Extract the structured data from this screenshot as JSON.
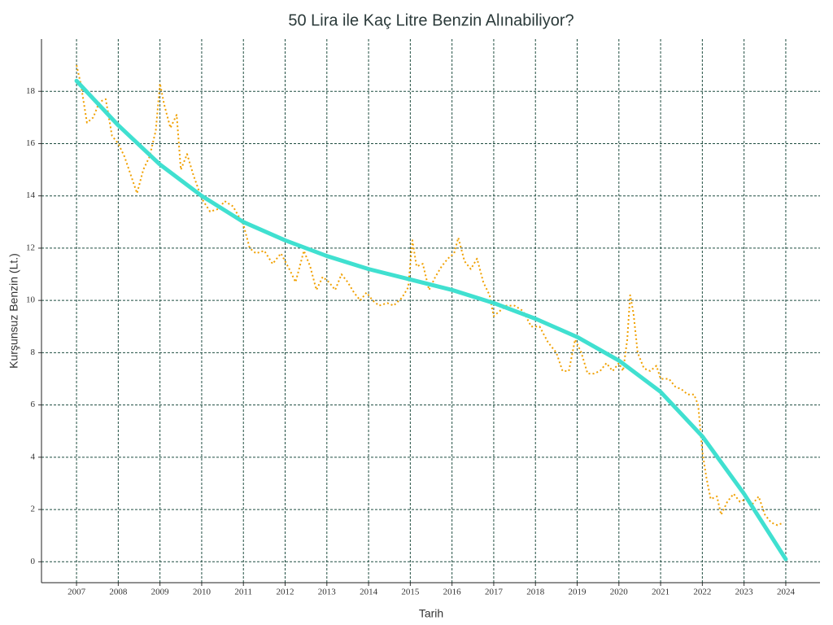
{
  "chart_data": {
    "type": "line",
    "title": "50 Lira ile Kaç Litre Benzin Alınabiliyor?",
    "x_label": "Tarih",
    "y_label": "Kurşunsuz Benzin (Lt.)",
    "xlim": [
      2006.16,
      2024.82
    ],
    "ylim": [
      -0.8,
      20.0
    ],
    "xticks": [
      2007,
      2008,
      2009,
      2010,
      2011,
      2012,
      2013,
      2014,
      2015,
      2016,
      2017,
      2018,
      2019,
      2020,
      2021,
      2022,
      2023,
      2024
    ],
    "yticks": [
      0,
      2,
      4,
      6,
      8,
      10,
      12,
      14,
      16,
      18
    ],
    "grid": true,
    "grid_color": "#1f4d40",
    "series": [
      {
        "color": "#f0a000",
        "dash": "dotted",
        "width": 2,
        "x": [
          2007.0,
          2007.1,
          2007.25,
          2007.4,
          2007.55,
          2007.7,
          2007.85,
          2008.0,
          2008.15,
          2008.3,
          2008.45,
          2008.6,
          2008.75,
          2008.9,
          2009.0,
          2009.1,
          2009.25,
          2009.4,
          2009.5,
          2009.65,
          2009.8,
          2010.0,
          2010.2,
          2010.4,
          2010.55,
          2010.75,
          2011.0,
          2011.15,
          2011.3,
          2011.5,
          2011.7,
          2011.9,
          2012.1,
          2012.25,
          2012.45,
          2012.6,
          2012.75,
          2012.9,
          2013.05,
          2013.2,
          2013.35,
          2013.5,
          2013.65,
          2013.8,
          2013.95,
          2014.1,
          2014.25,
          2014.45,
          2014.6,
          2014.8,
          2014.95,
          2015.05,
          2015.15,
          2015.3,
          2015.45,
          2015.6,
          2015.75,
          2015.9,
          2016.05,
          2016.15,
          2016.3,
          2016.45,
          2016.6,
          2016.75,
          2016.9,
          2017.0,
          2017.15,
          2017.3,
          2017.5,
          2017.7,
          2017.9,
          2018.1,
          2018.3,
          2018.5,
          2018.65,
          2018.8,
          2018.95,
          2019.1,
          2019.25,
          2019.4,
          2019.55,
          2019.7,
          2019.85,
          2020.0,
          2020.1,
          2020.2,
          2020.27,
          2020.35,
          2020.45,
          2020.6,
          2020.75,
          2020.9,
          2021.0,
          2021.2,
          2021.35,
          2021.5,
          2021.65,
          2021.8,
          2021.9,
          2022.0,
          2022.1,
          2022.2,
          2022.35,
          2022.45,
          2022.6,
          2022.75,
          2022.9,
          2023.05,
          2023.2,
          2023.35,
          2023.5,
          2023.65,
          2023.8,
          2023.95
        ],
        "values": [
          19.0,
          18.3,
          16.8,
          17.0,
          17.6,
          17.7,
          16.3,
          16.0,
          15.5,
          14.8,
          14.1,
          15.0,
          15.5,
          16.5,
          18.3,
          17.5,
          16.6,
          17.1,
          15.0,
          15.6,
          14.8,
          13.9,
          13.4,
          13.5,
          13.8,
          13.6,
          12.9,
          12.0,
          11.8,
          11.9,
          11.4,
          11.8,
          11.2,
          10.7,
          11.9,
          11.3,
          10.4,
          10.9,
          10.7,
          10.4,
          11.0,
          10.7,
          10.3,
          10.0,
          10.3,
          10.0,
          9.8,
          9.9,
          9.8,
          10.1,
          10.5,
          12.3,
          11.3,
          11.4,
          10.4,
          10.9,
          11.3,
          11.6,
          11.8,
          12.4,
          11.5,
          11.2,
          11.6,
          10.7,
          10.2,
          9.4,
          9.6,
          9.8,
          9.8,
          9.6,
          9.0,
          9.0,
          8.4,
          8.0,
          7.3,
          7.3,
          8.5,
          8.0,
          7.2,
          7.2,
          7.3,
          7.6,
          7.3,
          7.6,
          7.3,
          8.5,
          10.2,
          9.5,
          8.0,
          7.4,
          7.3,
          7.5,
          7.0,
          7.0,
          6.7,
          6.6,
          6.4,
          6.4,
          6.0,
          4.2,
          3.2,
          2.4,
          2.5,
          1.8,
          2.3,
          2.6,
          2.3,
          2.4,
          2.2,
          2.5,
          1.8,
          1.5,
          1.4,
          1.5
        ]
      },
      {
        "color": "#40e0d0",
        "dash": "solid",
        "width": 5,
        "x": [
          2007,
          2008,
          2009,
          2010,
          2011,
          2012,
          2013,
          2014,
          2015,
          2016,
          2017,
          2018,
          2019,
          2020,
          2021,
          2022,
          2023,
          2024
        ],
        "values": [
          18.4,
          16.7,
          15.2,
          14.0,
          13.0,
          12.3,
          11.7,
          11.2,
          10.8,
          10.4,
          9.9,
          9.3,
          8.6,
          7.7,
          6.5,
          4.8,
          2.6,
          0.1
        ]
      }
    ]
  }
}
